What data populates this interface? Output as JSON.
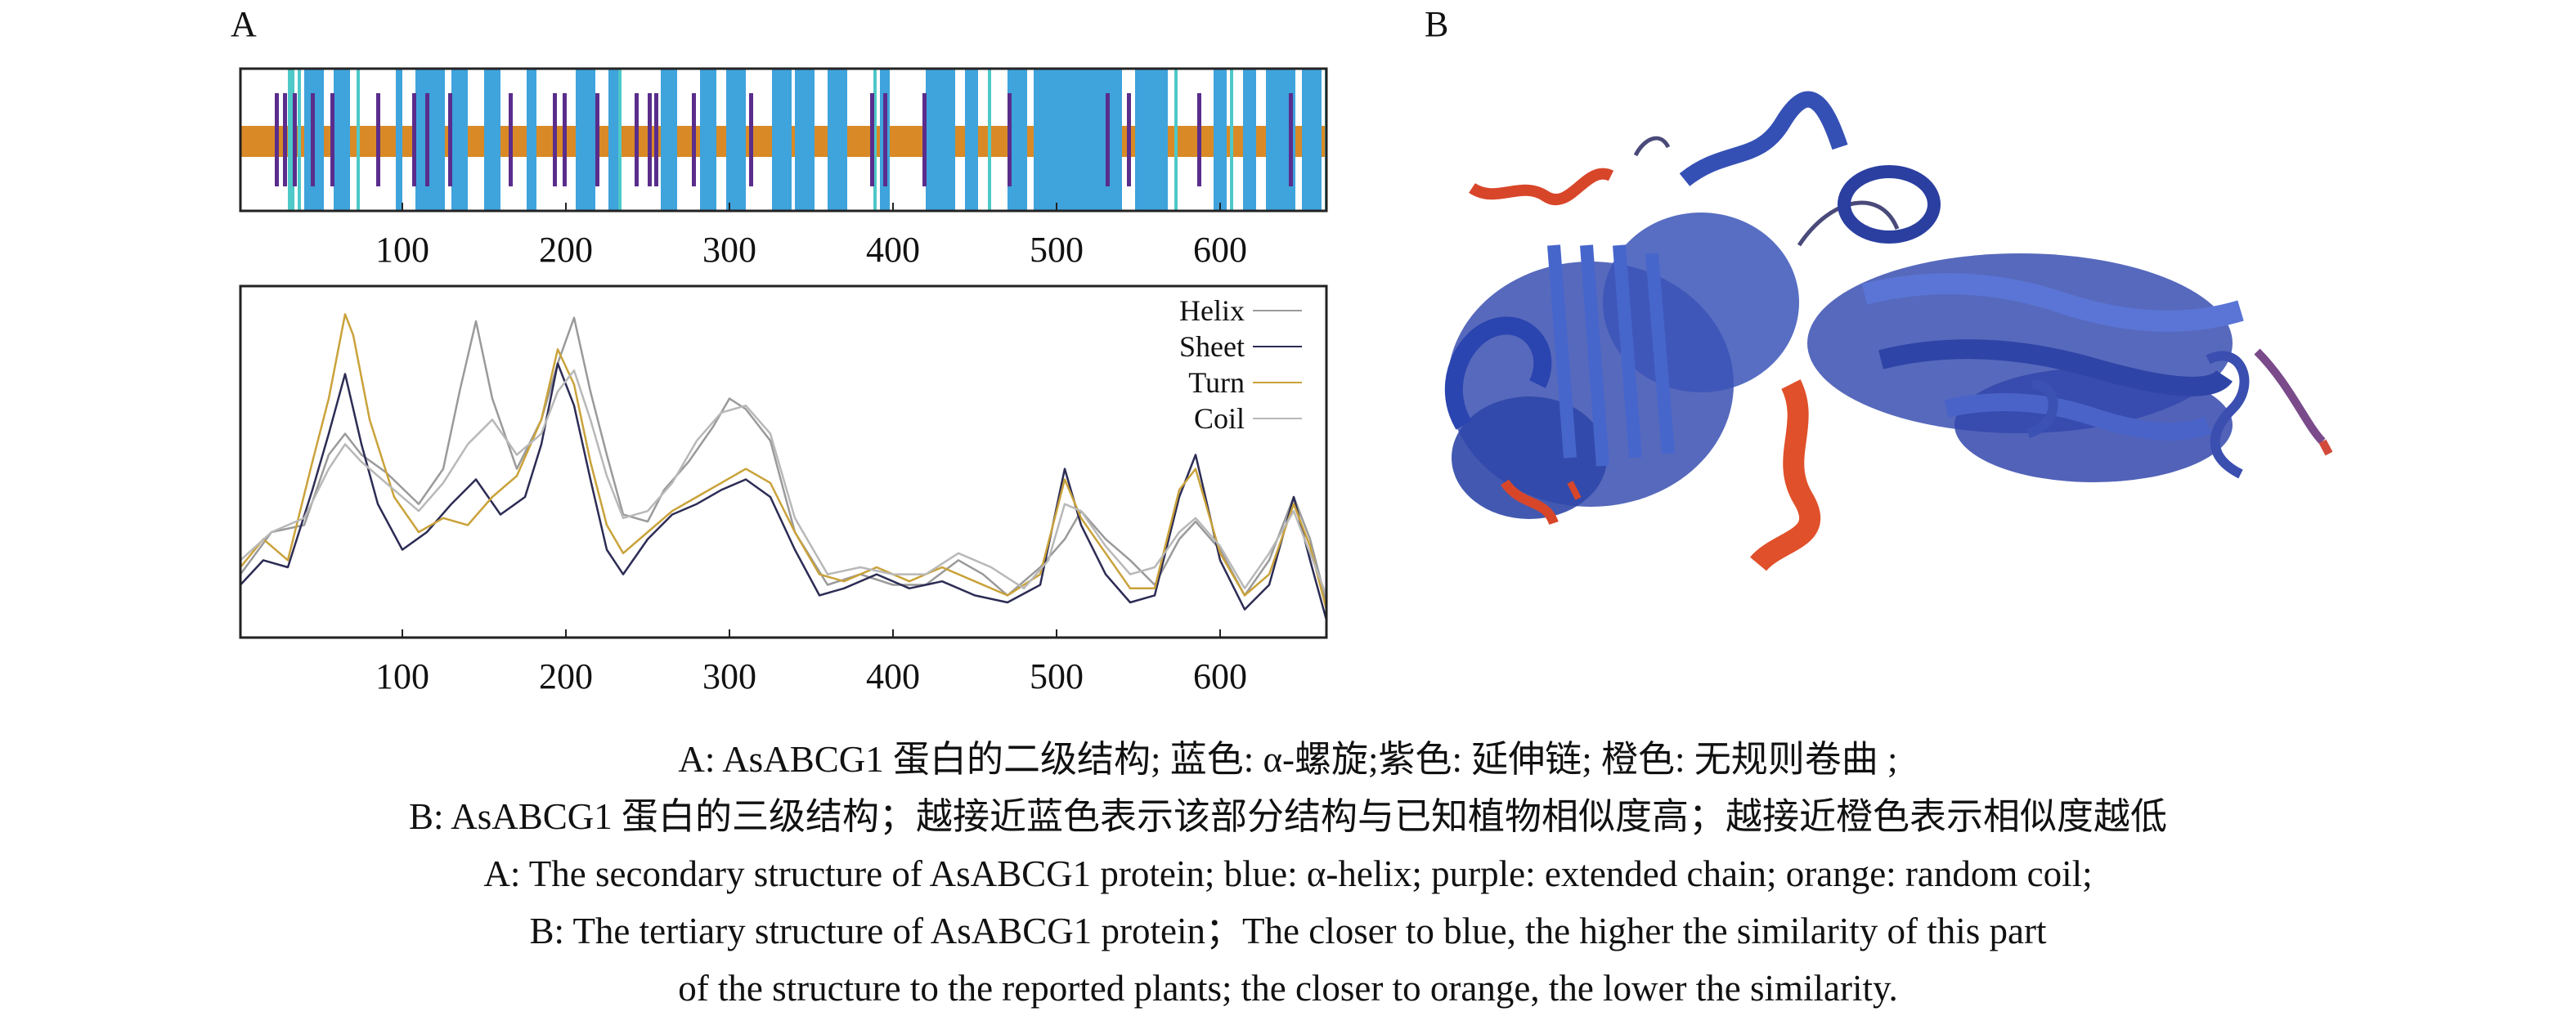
{
  "panels": {
    "a_label": "A",
    "b_label": "B"
  },
  "chart_data": [
    {
      "type": "bar",
      "panel": "A",
      "part": "secondary-structure track",
      "x_range": [
        1,
        665
      ],
      "x_ticks": [
        100,
        200,
        300,
        400,
        500,
        600
      ],
      "colors": {
        "helix": "#3fa3dc",
        "sheet": "#5a2d8c",
        "coil": "#d98a26",
        "turn": "#4ec8c8"
      },
      "coil_band": {
        "start": 1,
        "end": 665
      },
      "helix_segments": [
        [
          40,
          52
        ],
        [
          58,
          68
        ],
        [
          96,
          100
        ],
        [
          108,
          126
        ],
        [
          130,
          140
        ],
        [
          150,
          160
        ],
        [
          176,
          182
        ],
        [
          206,
          218
        ],
        [
          226,
          232
        ],
        [
          258,
          268
        ],
        [
          282,
          292
        ],
        [
          298,
          310
        ],
        [
          326,
          338
        ],
        [
          340,
          352
        ],
        [
          360,
          372
        ],
        [
          392,
          398
        ],
        [
          420,
          438
        ],
        [
          444,
          452
        ],
        [
          470,
          482
        ],
        [
          486,
          540
        ],
        [
          548,
          568
        ],
        [
          596,
          604
        ],
        [
          614,
          622
        ],
        [
          628,
          646
        ],
        [
          650,
          662
        ]
      ],
      "turn_segments": [
        [
          30,
          34
        ],
        [
          36,
          38
        ],
        [
          72,
          74
        ],
        [
          232,
          234
        ],
        [
          388,
          390
        ],
        [
          458,
          460
        ],
        [
          572,
          574
        ],
        [
          606,
          608
        ],
        [
          664,
          665
        ]
      ],
      "sheet_segments": [
        [
          22,
          24
        ],
        [
          27,
          29
        ],
        [
          33,
          35
        ],
        [
          44,
          46
        ],
        [
          56,
          58
        ],
        [
          84,
          86
        ],
        [
          106,
          108
        ],
        [
          114,
          116
        ],
        [
          128,
          130
        ],
        [
          165,
          167
        ],
        [
          192,
          194
        ],
        [
          198,
          200
        ],
        [
          218,
          220
        ],
        [
          242,
          244
        ],
        [
          250,
          252
        ],
        [
          254,
          256
        ],
        [
          277,
          279
        ],
        [
          312,
          314
        ],
        [
          386,
          388
        ],
        [
          394,
          396
        ],
        [
          418,
          420
        ],
        [
          470,
          472
        ],
        [
          530,
          532
        ],
        [
          543,
          545
        ],
        [
          586,
          588
        ],
        [
          642,
          644
        ]
      ]
    },
    {
      "type": "line",
      "panel": "A",
      "part": "profile plot",
      "x_range": [
        1,
        665
      ],
      "y_range": [
        0,
        1
      ],
      "x_ticks": [
        100,
        200,
        300,
        400,
        500,
        600
      ],
      "legend": [
        "Helix",
        "Sheet",
        "Turn",
        "Coil"
      ],
      "legend_position": "top-right",
      "series": [
        {
          "name": "Helix",
          "color": "#9a9a9a",
          "x": [
            1,
            20,
            40,
            55,
            65,
            75,
            90,
            110,
            125,
            135,
            145,
            155,
            170,
            185,
            195,
            205,
            215,
            225,
            235,
            250,
            260,
            275,
            290,
            300,
            310,
            325,
            340,
            360,
            380,
            400,
            420,
            440,
            455,
            470,
            490,
            505,
            515,
            530,
            545,
            560,
            575,
            585,
            600,
            615,
            630,
            645,
            655,
            665
          ],
          "y": [
            0.18,
            0.3,
            0.32,
            0.52,
            0.58,
            0.52,
            0.47,
            0.38,
            0.48,
            0.7,
            0.9,
            0.68,
            0.48,
            0.62,
            0.78,
            0.91,
            0.7,
            0.52,
            0.35,
            0.33,
            0.42,
            0.5,
            0.6,
            0.68,
            0.65,
            0.56,
            0.3,
            0.15,
            0.18,
            0.15,
            0.15,
            0.22,
            0.18,
            0.12,
            0.2,
            0.28,
            0.36,
            0.28,
            0.22,
            0.15,
            0.28,
            0.33,
            0.25,
            0.12,
            0.22,
            0.4,
            0.28,
            0.1
          ]
        },
        {
          "name": "Sheet",
          "color": "#2c2c55",
          "x": [
            1,
            15,
            30,
            45,
            55,
            65,
            75,
            85,
            100,
            115,
            130,
            145,
            160,
            175,
            185,
            195,
            205,
            215,
            225,
            235,
            250,
            265,
            280,
            295,
            310,
            325,
            340,
            355,
            370,
            390,
            410,
            430,
            450,
            470,
            490,
            505,
            515,
            530,
            545,
            560,
            575,
            585,
            600,
            615,
            630,
            645,
            655,
            665
          ],
          "y": [
            0.15,
            0.22,
            0.2,
            0.42,
            0.58,
            0.75,
            0.55,
            0.38,
            0.25,
            0.3,
            0.38,
            0.45,
            0.35,
            0.4,
            0.55,
            0.78,
            0.66,
            0.45,
            0.25,
            0.18,
            0.28,
            0.35,
            0.38,
            0.42,
            0.45,
            0.4,
            0.25,
            0.12,
            0.14,
            0.18,
            0.14,
            0.16,
            0.12,
            0.1,
            0.15,
            0.48,
            0.32,
            0.18,
            0.1,
            0.12,
            0.4,
            0.52,
            0.22,
            0.08,
            0.15,
            0.4,
            0.22,
            0.05
          ]
        },
        {
          "name": "Turn",
          "color": "#c9a23a",
          "x": [
            1,
            15,
            30,
            45,
            55,
            65,
            70,
            80,
            95,
            110,
            125,
            140,
            155,
            170,
            185,
            195,
            205,
            215,
            225,
            235,
            250,
            265,
            280,
            295,
            310,
            325,
            340,
            355,
            370,
            390,
            410,
            430,
            450,
            470,
            490,
            505,
            515,
            530,
            545,
            560,
            575,
            585,
            600,
            615,
            630,
            645,
            655,
            665
          ],
          "y": [
            0.2,
            0.28,
            0.22,
            0.5,
            0.68,
            0.92,
            0.86,
            0.62,
            0.4,
            0.3,
            0.34,
            0.32,
            0.4,
            0.46,
            0.62,
            0.82,
            0.72,
            0.5,
            0.32,
            0.24,
            0.3,
            0.36,
            0.4,
            0.44,
            0.48,
            0.44,
            0.3,
            0.18,
            0.16,
            0.2,
            0.16,
            0.2,
            0.16,
            0.12,
            0.18,
            0.45,
            0.34,
            0.24,
            0.14,
            0.14,
            0.42,
            0.48,
            0.24,
            0.12,
            0.18,
            0.38,
            0.26,
            0.08
          ]
        },
        {
          "name": "Coil",
          "color": "#b8b8b8",
          "x": [
            1,
            20,
            40,
            55,
            65,
            75,
            90,
            110,
            125,
            140,
            155,
            170,
            185,
            195,
            205,
            215,
            225,
            235,
            250,
            265,
            280,
            295,
            310,
            325,
            340,
            360,
            380,
            400,
            420,
            440,
            460,
            480,
            495,
            505,
            515,
            530,
            545,
            560,
            575,
            585,
            600,
            615,
            630,
            645,
            655,
            665
          ],
          "y": [
            0.22,
            0.3,
            0.34,
            0.48,
            0.55,
            0.5,
            0.44,
            0.36,
            0.44,
            0.55,
            0.62,
            0.52,
            0.58,
            0.7,
            0.76,
            0.62,
            0.46,
            0.34,
            0.36,
            0.44,
            0.56,
            0.64,
            0.66,
            0.58,
            0.34,
            0.18,
            0.2,
            0.18,
            0.18,
            0.24,
            0.2,
            0.14,
            0.22,
            0.38,
            0.36,
            0.26,
            0.18,
            0.2,
            0.3,
            0.34,
            0.26,
            0.14,
            0.24,
            0.36,
            0.24,
            0.12
          ]
        }
      ]
    }
  ],
  "panel_b": {
    "description_visible": false
  },
  "captions": {
    "line1": "A: AsABCG1 蛋白的二级结构; 蓝色: α-螺旋;紫色: 延伸链; 橙色: 无规则卷曲 ;",
    "line2": "B: AsABCG1 蛋白的三级结构；越接近蓝色表示该部分结构与已知植物相似度高；越接近橙色表示相似度越低",
    "line3": "A: The secondary structure of AsABCG1 protein; blue: α-helix; purple: extended chain; orange: random coil;",
    "line4": "B: The tertiary structure of AsABCG1 protein；The closer to blue, the higher the similarity of this part",
    "line5": "of the structure to the reported plants; the closer to orange, the lower the similarity."
  }
}
